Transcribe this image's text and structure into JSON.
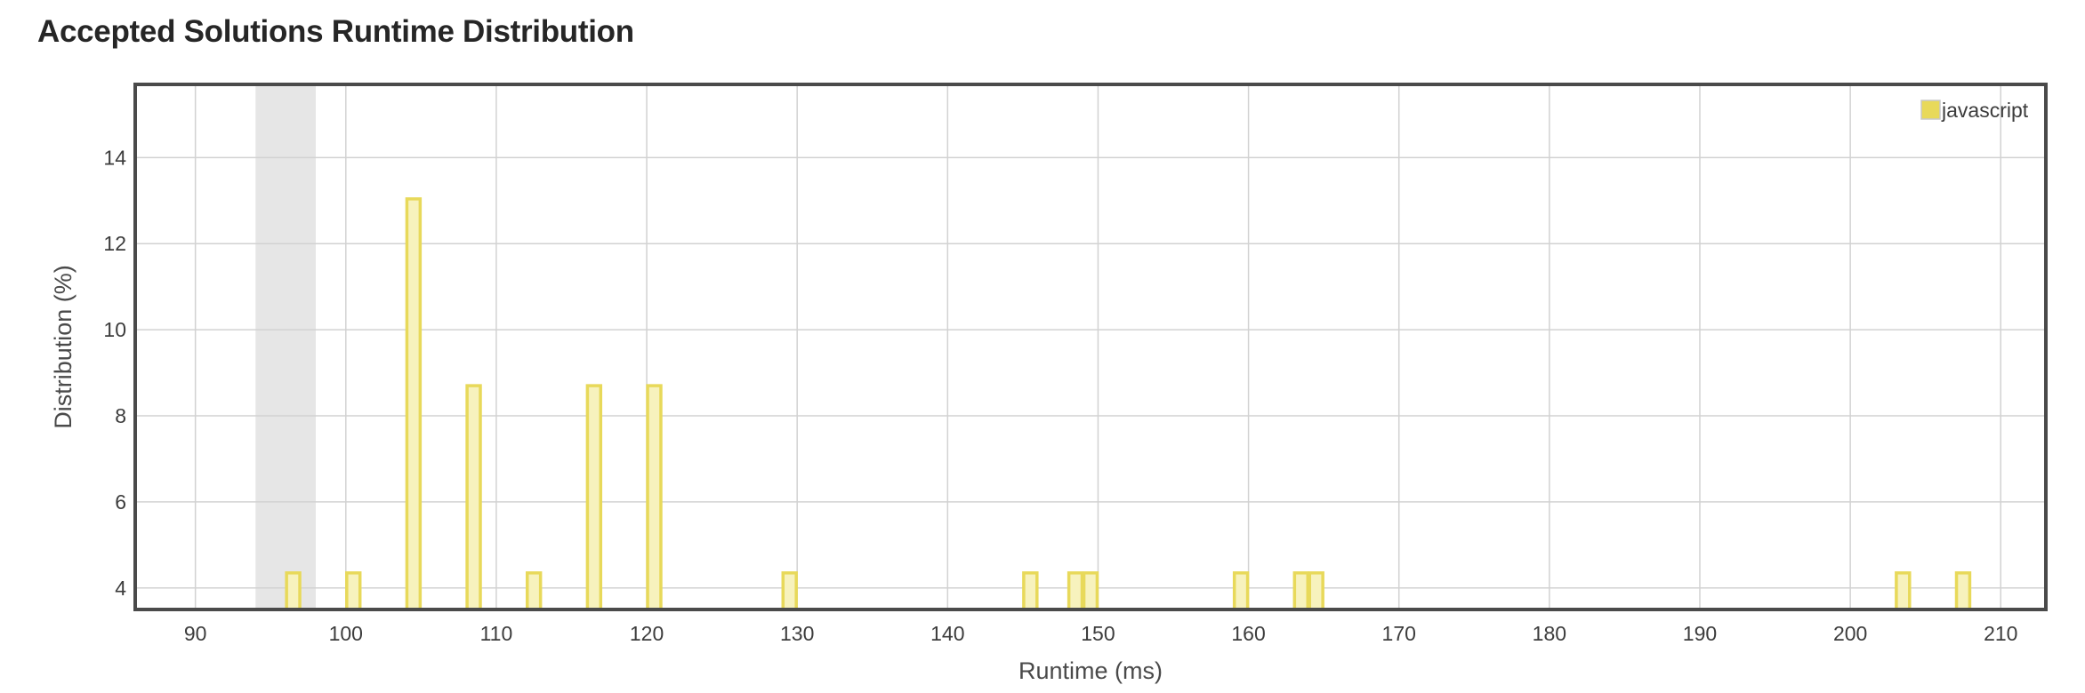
{
  "header": {
    "title": "Accepted Solutions Runtime Distribution"
  },
  "chart_data": {
    "type": "bar",
    "title": "Accepted Solutions Runtime Distribution",
    "xlabel": "Runtime (ms)",
    "ylabel": "Distribution (%)",
    "xlim": [
      86,
      213
    ],
    "ylim": [
      3.5,
      15.7
    ],
    "x_ticks": [
      90,
      100,
      110,
      120,
      130,
      140,
      150,
      160,
      170,
      180,
      190,
      200,
      210
    ],
    "y_ticks": [
      4,
      6,
      8,
      10,
      12,
      14
    ],
    "grid": true,
    "legend_position": "top-right",
    "highlight_range": [
      94,
      98
    ],
    "series": [
      {
        "name": "javascript",
        "color": "#e8d95a",
        "fill": "#f7f2bd",
        "x": [
          96.5,
          100.5,
          104.5,
          108.5,
          112.5,
          116.5,
          120.5,
          129.5,
          145.5,
          148.5,
          149.5,
          159.5,
          163.5,
          164.5,
          203.5,
          207.5
        ],
        "values": [
          4.35,
          4.35,
          13.04,
          8.7,
          4.35,
          8.7,
          8.7,
          4.35,
          4.35,
          4.35,
          4.35,
          4.35,
          4.35,
          4.35,
          4.35,
          4.35
        ]
      }
    ]
  }
}
